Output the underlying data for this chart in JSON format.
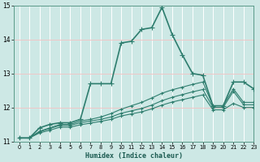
{
  "xlabel": "Humidex (Indice chaleur)",
  "ylabel": "",
  "xlim": [
    -0.5,
    23
  ],
  "ylim": [
    11,
    15
  ],
  "yticks": [
    11,
    12,
    13,
    14,
    15
  ],
  "xticks": [
    0,
    1,
    2,
    3,
    4,
    5,
    6,
    7,
    8,
    9,
    10,
    11,
    12,
    13,
    14,
    15,
    16,
    17,
    18,
    19,
    20,
    21,
    22,
    23
  ],
  "background_color": "#cde8e5",
  "grid_color": "#b0d8d4",
  "line_color": "#2e7d6e",
  "series": [
    {
      "x": [
        0,
        1,
        2,
        3,
        4,
        5,
        6,
        7,
        8,
        9,
        10,
        11,
        12,
        13,
        14,
        15,
        16,
        17,
        18,
        19,
        20,
        21,
        22,
        23
      ],
      "y": [
        11.1,
        11.1,
        11.4,
        11.5,
        11.55,
        11.55,
        11.65,
        12.7,
        12.7,
        12.7,
        13.9,
        13.95,
        14.3,
        14.35,
        14.95,
        14.15,
        13.55,
        13.0,
        12.95,
        12.05,
        12.05,
        12.75,
        12.75,
        12.55
      ],
      "marker": "+",
      "markersize": 4,
      "linewidth": 1.2
    },
    {
      "x": [
        0,
        1,
        2,
        3,
        4,
        5,
        6,
        7,
        8,
        9,
        10,
        11,
        12,
        13,
        14,
        15,
        16,
        17,
        18,
        19,
        20,
        21,
        22,
        23
      ],
      "y": [
        11.1,
        11.1,
        11.3,
        11.4,
        11.5,
        11.5,
        11.6,
        11.65,
        11.72,
        11.82,
        11.95,
        12.05,
        12.15,
        12.28,
        12.42,
        12.52,
        12.6,
        12.68,
        12.75,
        12.05,
        12.05,
        12.55,
        12.15,
        12.15
      ],
      "marker": "+",
      "markersize": 3,
      "linewidth": 0.8
    },
    {
      "x": [
        0,
        1,
        2,
        3,
        4,
        5,
        6,
        7,
        8,
        9,
        10,
        11,
        12,
        13,
        14,
        15,
        16,
        17,
        18,
        19,
        20,
        21,
        22,
        23
      ],
      "y": [
        11.1,
        11.1,
        11.28,
        11.38,
        11.47,
        11.47,
        11.55,
        11.6,
        11.65,
        11.72,
        11.83,
        11.9,
        11.97,
        12.07,
        12.2,
        12.3,
        12.38,
        12.46,
        12.53,
        12.0,
        12.0,
        12.48,
        12.08,
        12.08
      ],
      "marker": "+",
      "markersize": 3,
      "linewidth": 0.8
    },
    {
      "x": [
        0,
        1,
        2,
        3,
        4,
        5,
        6,
        7,
        8,
        9,
        10,
        11,
        12,
        13,
        14,
        15,
        16,
        17,
        18,
        19,
        20,
        21,
        22,
        23
      ],
      "y": [
        11.1,
        11.1,
        11.25,
        11.33,
        11.42,
        11.42,
        11.49,
        11.54,
        11.59,
        11.65,
        11.75,
        11.81,
        11.87,
        11.96,
        12.07,
        12.16,
        12.23,
        12.3,
        12.37,
        11.93,
        11.93,
        12.12,
        12.0,
        12.0
      ],
      "marker": "+",
      "markersize": 3,
      "linewidth": 0.8
    }
  ]
}
